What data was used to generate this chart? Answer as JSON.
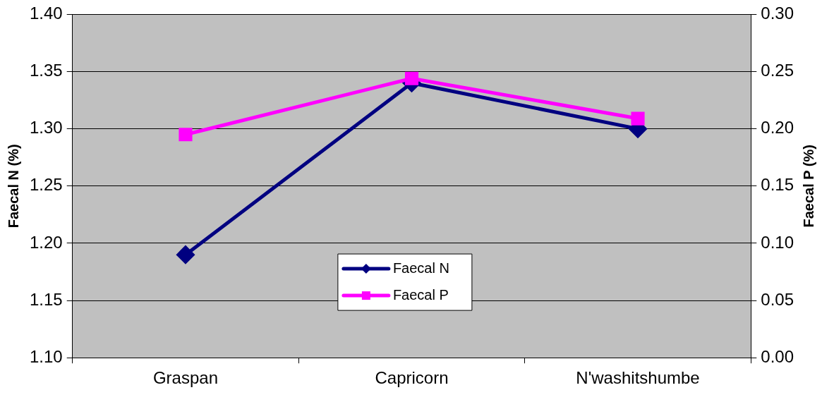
{
  "chart_data": {
    "type": "line",
    "ylabel": "Faecal N (%)",
    "y2label": "Faecal P (%)",
    "categories": [
      "Graspan",
      "Capricorn",
      "N'washitshumbe"
    ],
    "series": [
      {
        "name": "Faecal N",
        "color": "#000080",
        "values": [
          1.19,
          1.34,
          1.3
        ],
        "marker": "diamond"
      },
      {
        "name": "Faecal P",
        "color": "#ff00ff",
        "values": [
          0.195,
          0.244,
          0.209
        ],
        "marker": "square",
        "axis": "y2"
      }
    ],
    "ylim": [
      1.1,
      1.4
    ],
    "yticks": [
      {
        "value": 1.1,
        "label": "1.10"
      },
      {
        "value": 1.15,
        "label": "1.15"
      },
      {
        "value": 1.2,
        "label": "1.20"
      },
      {
        "value": 1.25,
        "label": "1.25"
      },
      {
        "value": 1.3,
        "label": "1.30"
      },
      {
        "value": 1.35,
        "label": "1.35"
      },
      {
        "value": 1.4,
        "label": "1.40"
      }
    ],
    "y2lim": [
      0,
      0.3
    ],
    "y2ticks": [
      {
        "value": 0,
        "label": "0.00"
      },
      {
        "value": 0.05,
        "label": "0.05"
      },
      {
        "value": 0.1,
        "label": "0.10"
      },
      {
        "value": 0.15,
        "label": "0.15"
      },
      {
        "value": 0.2,
        "label": "0.20"
      },
      {
        "value": 0.25,
        "label": "0.25"
      },
      {
        "value": 0.3,
        "label": "0.30"
      }
    ],
    "grid": "y",
    "legend": "center",
    "line_style": "solid"
  }
}
